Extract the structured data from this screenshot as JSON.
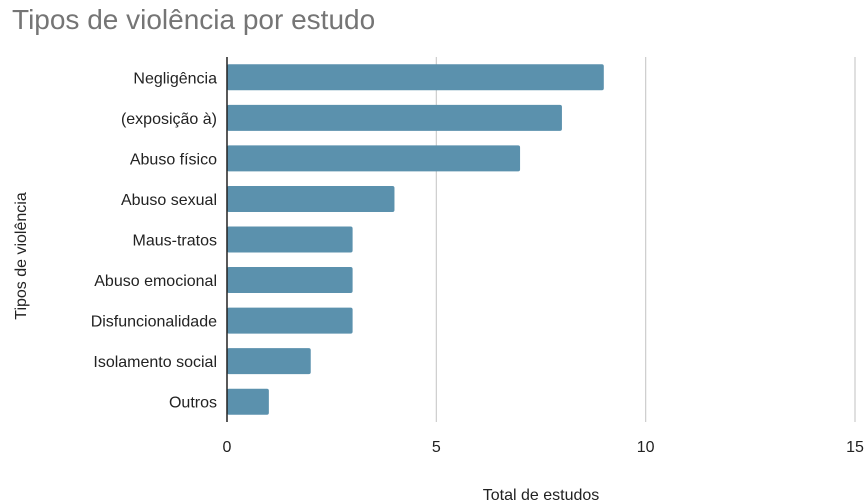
{
  "chart_data": {
    "type": "bar",
    "orientation": "horizontal",
    "title": "Tipos de violência por estudo",
    "xlabel": "Total de estudos",
    "ylabel": "Tipos de violência",
    "categories": [
      "Negligência",
      "(exposição à)",
      "Abuso físico",
      "Abuso sexual",
      "Maus-tratos",
      "Abuso emocional",
      "Disfuncionalidade",
      "Isolamento social",
      "Outros"
    ],
    "values": [
      9,
      8,
      7,
      4,
      3,
      3,
      3,
      2,
      1
    ],
    "xlim": [
      0,
      15
    ],
    "xticks": [
      "0",
      "5",
      "10",
      "15"
    ],
    "grid": "vertical",
    "bar_color": "#5b91ad",
    "grid_color": "#cccccc",
    "axis_color": "#222222"
  }
}
